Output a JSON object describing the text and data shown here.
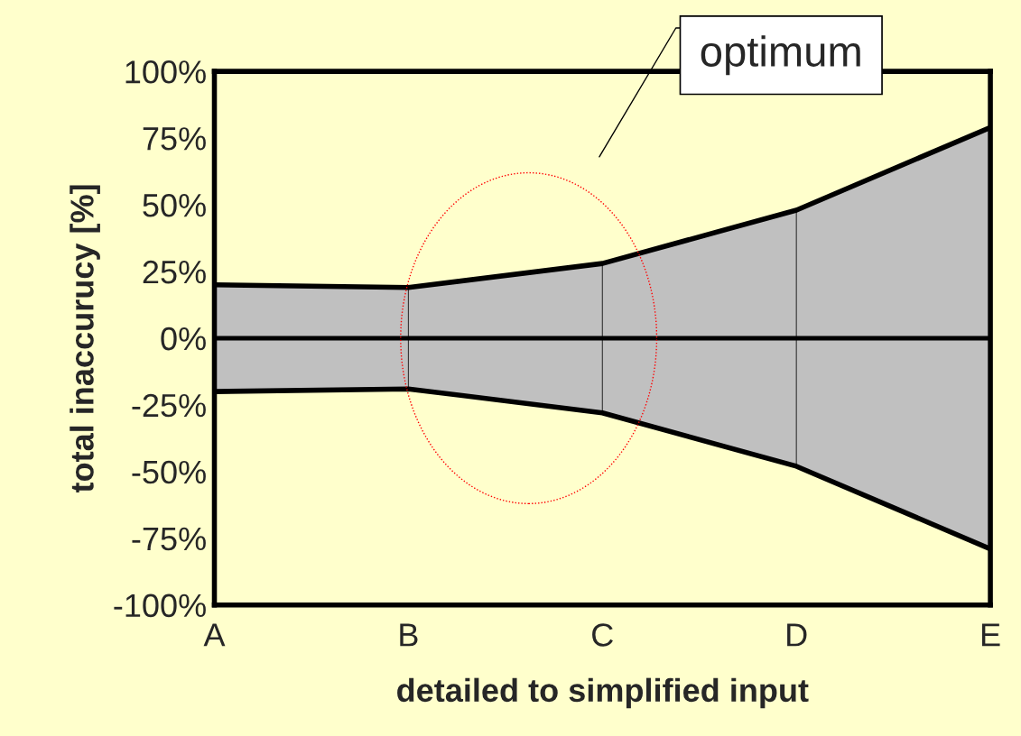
{
  "chart_data": {
    "type": "area",
    "xlabel": "detailed to simplified input",
    "ylabel": "total inaccurucy [%]",
    "categories": [
      "A",
      "B",
      "C",
      "D",
      "E"
    ],
    "series": [
      {
        "color": "#c0c0c0",
        "values": [
          20,
          19,
          28,
          48,
          79
        ]
      },
      {
        "color": "#c0c0c0",
        "values": [
          -20,
          -19,
          -28,
          -48,
          -79
        ]
      }
    ],
    "ylim": [
      -100,
      100
    ],
    "yticks": [
      {
        "value": -100,
        "label": "-100%"
      },
      {
        "value": -75,
        "label": "-75%"
      },
      {
        "value": -50,
        "label": "-50%"
      },
      {
        "value": -25,
        "label": "-25%"
      },
      {
        "value": 0,
        "label": "0%"
      },
      {
        "value": 25,
        "label": "25%"
      },
      {
        "value": 50,
        "label": "50%"
      },
      {
        "value": 75,
        "label": "75%"
      },
      {
        "value": 100,
        "label": "100%"
      }
    ],
    "ref_lines": [
      {
        "axis": "y",
        "value": 0,
        "color": "#000000"
      }
    ],
    "annotations": [
      "optimum"
    ],
    "grid": false,
    "legend": false
  }
}
